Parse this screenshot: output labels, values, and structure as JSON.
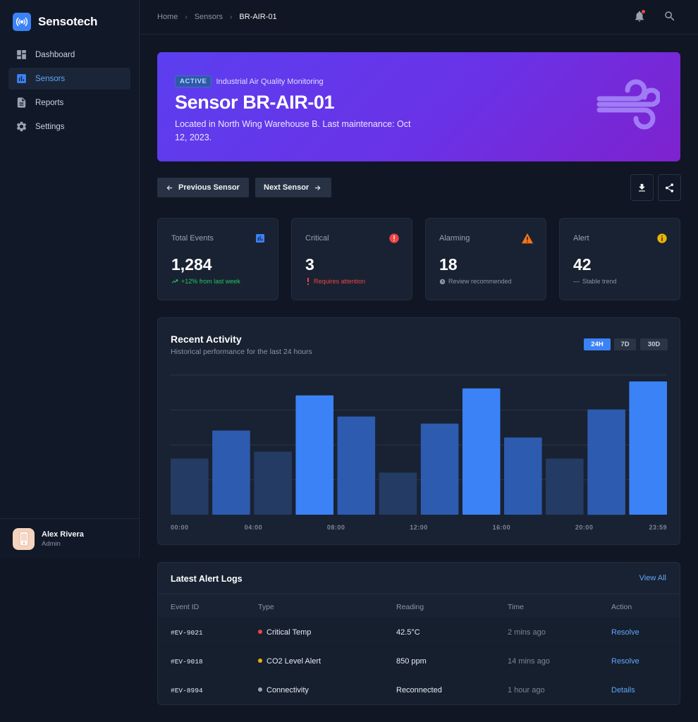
{
  "app": {
    "name": "Sensotech"
  },
  "sidebar": {
    "items": [
      {
        "label": "Dashboard",
        "icon": "dashboard-icon",
        "active": false
      },
      {
        "label": "Sensors",
        "icon": "bar-chart-icon",
        "active": true
      },
      {
        "label": "Reports",
        "icon": "document-icon",
        "active": false
      },
      {
        "label": "Settings",
        "icon": "gear-icon",
        "active": false
      }
    ]
  },
  "user": {
    "name": "Alex Rivera",
    "role": "Admin"
  },
  "breadcrumb": {
    "home": "Home",
    "section": "Sensors",
    "current": "BR-AIR-01"
  },
  "hero": {
    "badge": "ACTIVE",
    "category": "Industrial Air Quality Monitoring",
    "title": "Sensor BR-AIR-01",
    "description": "Located in North Wing Warehouse B. Last maintenance: Oct 12, 2023.",
    "icon": "wind-icon"
  },
  "actions": {
    "prev": "Previous Sensor",
    "next": "Next Sensor"
  },
  "stats": [
    {
      "label": "Total Events",
      "value": "1,284",
      "note": "+12% from last week",
      "note_color": "#22c55e",
      "icon": "bar-chart-icon",
      "icon_color": "#3b82f6"
    },
    {
      "label": "Critical",
      "value": "3",
      "note": "Requires attention",
      "note_color": "#ef4444",
      "icon": "error-icon",
      "icon_color": "#ef4444"
    },
    {
      "label": "Alarming",
      "value": "18",
      "note": "Review recommended",
      "note_color": "#8b95a5",
      "icon": "warning-icon",
      "icon_color": "#f97316"
    },
    {
      "label": "Alert",
      "value": "42",
      "note": "Stable trend",
      "note_color": "#8b95a5",
      "icon": "info-icon",
      "icon_color": "#eab308"
    }
  ],
  "activity": {
    "title": "Recent Activity",
    "subtitle": "Historical performance for the last 24 hours",
    "ranges": [
      "24H",
      "7D",
      "30D"
    ],
    "active_range": "24H"
  },
  "chart_data": {
    "type": "bar",
    "values": [
      40,
      60,
      45,
      85,
      70,
      30,
      65,
      90,
      55,
      40,
      75,
      95
    ],
    "tick_labels": [
      "00:00",
      "04:00",
      "08:00",
      "12:00",
      "16:00",
      "20:00",
      "23:59"
    ],
    "ylim": [
      0,
      100
    ],
    "grid": true,
    "highlight": [
      3,
      7,
      11
    ],
    "colors": {
      "base": "#243b63",
      "mid": "#2d5bb0",
      "highlight": "#3b82f6"
    }
  },
  "alerts": {
    "title": "Latest Alert Logs",
    "view_all": "View All",
    "columns": [
      "Event ID",
      "Type",
      "Reading",
      "Time",
      "Action"
    ],
    "rows": [
      {
        "id": "#EV-9021",
        "type": "Critical Temp",
        "dot": "#ef4444",
        "reading": "42.5°C",
        "time": "2 mins ago",
        "action": "Resolve"
      },
      {
        "id": "#EV-9018",
        "type": "CO2 Level Alert",
        "dot": "#eab308",
        "reading": "850 ppm",
        "time": "14 mins ago",
        "action": "Resolve"
      },
      {
        "id": "#EV-8994",
        "type": "Connectivity",
        "dot": "#9ca3af",
        "reading": "Reconnected",
        "time": "1 hour ago",
        "action": "Details"
      }
    ]
  }
}
